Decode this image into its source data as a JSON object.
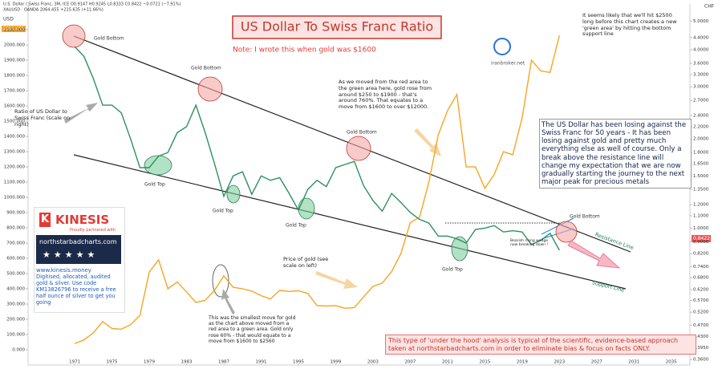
{
  "chart_data": {
    "type": "line",
    "title": "US Dollar To Swiss Franc Ratio",
    "subtitle": "Note: I wrote this when gold was $1600",
    "header": [
      "U.S. Dollar / Swiss Franc, 3M, ICE  O0.9147 H0.9245 L0.8333 C0.8422 −0.0721 (−7.91%)",
      "XAUUSD · OANDA  2064.455 +215.635 (+11.66%)"
    ],
    "axis_units": {
      "left": "USD",
      "right": "CHF"
    },
    "price_tags": {
      "gold": "2064.455",
      "ratio": "0.8422"
    },
    "x": [
      1971,
      1972,
      1973,
      1974,
      1975,
      1976,
      1977,
      1978,
      1979,
      1980,
      1981,
      1982,
      1983,
      1984,
      1985,
      1986,
      1987,
      1988,
      1989,
      1990,
      1991,
      1992,
      1993,
      1994,
      1995,
      1996,
      1997,
      1998,
      1999,
      2000,
      2001,
      2002,
      2003,
      2004,
      2005,
      2006,
      2007,
      2008,
      2009,
      2010,
      2011,
      2012,
      2013,
      2014,
      2015,
      2016,
      2017,
      2018,
      2019,
      2020,
      2021,
      2022,
      2023
    ],
    "series": [
      {
        "name": "XAUUSD",
        "color": "#f5a623",
        "axis": "y",
        "values": [
          40,
          65,
          110,
          185,
          140,
          135,
          165,
          225,
          510,
          590,
          400,
          445,
          380,
          310,
          325,
          390,
          485,
          410,
          400,
          385,
          355,
          333,
          390,
          383,
          387,
          370,
          290,
          287,
          290,
          272,
          277,
          347,
          416,
          438,
          513,
          632,
          834,
          870,
          1100,
          1410,
          1570,
          1675,
          1200,
          1200,
          1060,
          1150,
          1300,
          1280,
          1520,
          1900,
          1830,
          1820,
          2064
        ]
      },
      {
        "name": "U.S. Dollar / Swiss Franc",
        "color": "#2f8f63",
        "axis": "y2",
        "values": [
          4.1,
          3.8,
          3.2,
          2.6,
          2.6,
          2.45,
          2.0,
          1.6,
          1.6,
          1.75,
          1.8,
          2.1,
          2.2,
          2.6,
          2.1,
          1.65,
          1.28,
          1.5,
          1.55,
          1.3,
          1.5,
          1.45,
          1.48,
          1.31,
          1.15,
          1.35,
          1.45,
          1.38,
          1.6,
          1.64,
          1.68,
          1.39,
          1.24,
          1.14,
          1.31,
          1.22,
          1.13,
          1.07,
          1.04,
          0.94,
          0.94,
          0.92,
          0.89,
          0.99,
          1.0,
          1.02,
          0.97,
          0.98,
          0.97,
          0.88,
          0.91,
          0.96,
          0.8422
        ]
      }
    ],
    "xlim": [
      1966,
      2037
    ],
    "xticks": [
      1971,
      1975,
      1979,
      1983,
      1987,
      1991,
      1995,
      1999,
      2003,
      2007,
      2011,
      2015,
      2019,
      2023,
      2027,
      2031,
      2035
    ],
    "ylim": [
      -100,
      2190
    ],
    "yticks": [
      {
        "value": 0,
        "label": "0.000"
      },
      {
        "value": 100,
        "label": "100.000"
      },
      {
        "value": 200,
        "label": "200.000"
      },
      {
        "value": 300,
        "label": "300.000"
      },
      {
        "value": 400,
        "label": "400.000"
      },
      {
        "value": 500,
        "label": "500.000"
      },
      {
        "value": 600,
        "label": "600.000"
      },
      {
        "value": 700,
        "label": "700.000"
      },
      {
        "value": 800,
        "label": "800.000"
      },
      {
        "value": 900,
        "label": "900.000"
      },
      {
        "value": 1000,
        "label": "1000.000"
      },
      {
        "value": 1100,
        "label": "1100.000"
      },
      {
        "value": 1200,
        "label": "1200.000"
      },
      {
        "value": 1300,
        "label": "1300.000"
      },
      {
        "value": 1400,
        "label": "1400.000"
      },
      {
        "value": 1500,
        "label": "1500.000"
      },
      {
        "value": 1600,
        "label": "1600.000"
      },
      {
        "value": 1700,
        "label": "1700.000"
      },
      {
        "value": 1800,
        "label": "1800.000"
      },
      {
        "value": 1900,
        "label": "1900.000"
      },
      {
        "value": 2000,
        "label": "2000.000"
      },
      {
        "value": 2100,
        "label": "2100.000"
      }
    ],
    "y2log": true,
    "y2lim": [
      0.345,
      5.2
    ],
    "y2ticks": [
      {
        "value": 5,
        "label": "5.0000"
      },
      {
        "value": 4.4,
        "label": "4.4000"
      },
      {
        "value": 4,
        "label": "4.0000"
      },
      {
        "value": 3.6,
        "label": "3.6000"
      },
      {
        "value": 3.3,
        "label": "3.3000"
      },
      {
        "value": 3,
        "label": "3.0000"
      },
      {
        "value": 2.7,
        "label": "2.7000"
      },
      {
        "value": 2.4,
        "label": "2.4000"
      },
      {
        "value": 2.2,
        "label": "2.2000"
      },
      {
        "value": 2,
        "label": "2.0000"
      },
      {
        "value": 1.8,
        "label": "1.8000"
      },
      {
        "value": 1.65,
        "label": "1.6500"
      },
      {
        "value": 1.5,
        "label": "1.5000"
      },
      {
        "value": 1.35,
        "label": "1.3500"
      },
      {
        "value": 1.2,
        "label": "1.2000"
      },
      {
        "value": 1.1,
        "label": "1.1000"
      },
      {
        "value": 1,
        "label": "1.0000"
      },
      {
        "value": 0.9,
        "label": "0.9000"
      },
      {
        "value": 0.82,
        "label": "0.8200"
      },
      {
        "value": 0.74,
        "label": "0.7400"
      },
      {
        "value": 0.68,
        "label": "0.6800"
      },
      {
        "value": 0.62,
        "label": "0.6200"
      },
      {
        "value": 0.57,
        "label": "0.5700"
      },
      {
        "value": 0.52,
        "label": "0.5200"
      },
      {
        "value": 0.47,
        "label": "0.4700"
      },
      {
        "value": 0.43,
        "label": "0.4300"
      },
      {
        "value": 0.395,
        "label": "0.3950"
      },
      {
        "value": 0.36,
        "label": "0.3600"
      }
    ],
    "grid": false,
    "annotations": {
      "gold_bottom": "Gold Bottom",
      "gold_top": "Gold Top",
      "ratio_note": "Ratio of US Dollar to Swiss Franc (scale on right)",
      "gold_note": "Price of gold (see scale on left)",
      "smallest_move": "This was the smallest move for gold as the chart above moved from a red area to a green area. Gold only rose 60% - that would equate to a move from $1600 to $2560",
      "red_to_green": "As we moved from the red area to the green area here, gold rose from around $250 to $1900 - that's around 760%. That equates to a move from $1600 to over $12000.",
      "forecast": "It seems likely that we'll hit $2500 long before this chart creates a new 'green area' by hitting the bottom support line",
      "summary": "The US Dollar has been losing against the Swiss Franc for 50 years - It has been losing against gold and pretty much everything else as well of course. Only a break above the resistance line will change my expectation that we are now gradually starting the journey to the next major peak for precious metals",
      "disclaimer": "This type of 'under the hood' analysis is typical of the scientific, evidence-based approach taken at northstarbadcharts.com in order to eliminate bias & focus on facts ONLY.",
      "resistance": "Resistance Line",
      "support": "Support Line",
      "wedge": "Bearish rising wedge now breaking down !"
    },
    "logo": "iranbroker.net",
    "sponsor": {
      "brand": "KINESIS",
      "tagline": "Proudly partnered with",
      "site": "northstarbadcharts.com",
      "url": "www.kinesis.money",
      "offer": "Digitised, allocated, audited gold & silver. Use code KM13826796 to receive a free half ounce of silver to get you going"
    }
  }
}
